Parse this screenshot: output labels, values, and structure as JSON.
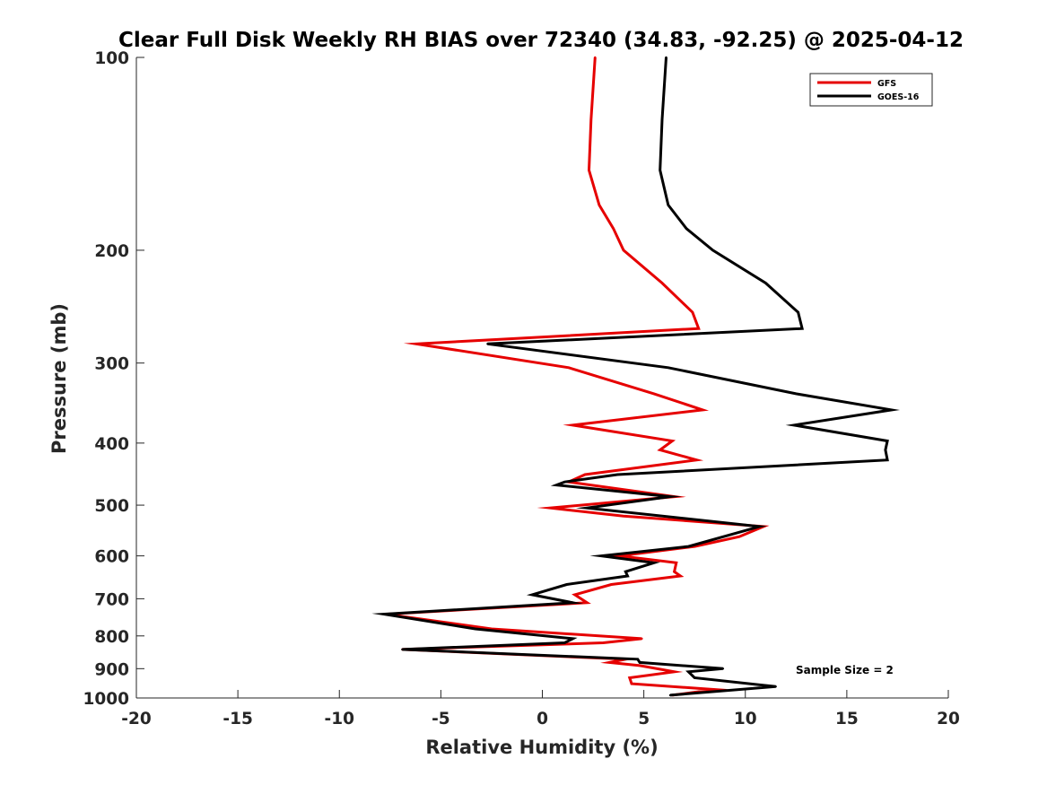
{
  "chart_data": {
    "type": "line",
    "title": "Clear Full Disk Weekly RH BIAS over 72340 (34.83, -92.25) @ 2025-04-12",
    "xlabel": "Relative Humidity (%)",
    "ylabel": "Pressure (mb)",
    "xlim": [
      -20,
      20
    ],
    "ylim": [
      100,
      1000
    ],
    "yscale": "log",
    "y_reversed": true,
    "grid": false,
    "x_ticks": [
      -20,
      -15,
      -10,
      -5,
      0,
      5,
      10,
      15,
      20
    ],
    "x_tick_labels": [
      "-20",
      "-15",
      "-10",
      "-5",
      "0",
      "5",
      "10",
      "15",
      "20"
    ],
    "y_ticks": [
      100,
      200,
      300,
      400,
      500,
      600,
      700,
      800,
      900,
      1000
    ],
    "y_tick_labels": [
      "100",
      "200",
      "300",
      "400",
      "500",
      "600",
      "700",
      "800",
      "900",
      "1000"
    ],
    "legend_position": "top-right",
    "annotation": "Sample Size = 2",
    "series": [
      {
        "name": "GFS",
        "color": "#e60000",
        "points": [
          [
            2.6,
            100
          ],
          [
            2.4,
            125
          ],
          [
            2.3,
            150
          ],
          [
            2.8,
            170
          ],
          [
            3.5,
            185
          ],
          [
            4.0,
            200
          ],
          [
            5.9,
            225
          ],
          [
            7.4,
            250
          ],
          [
            7.7,
            265
          ],
          [
            -6.2,
            280
          ],
          [
            1.3,
            305
          ],
          [
            5.5,
            335
          ],
          [
            7.9,
            355
          ],
          [
            1.5,
            375
          ],
          [
            6.4,
            397
          ],
          [
            5.8,
            410
          ],
          [
            7.6,
            425
          ],
          [
            2.1,
            448
          ],
          [
            1.3,
            460
          ],
          [
            6.5,
            485
          ],
          [
            0.4,
            505
          ],
          [
            4.0,
            520
          ],
          [
            10.9,
            540
          ],
          [
            9.7,
            560
          ],
          [
            7.5,
            580
          ],
          [
            3.8,
            600
          ],
          [
            6.6,
            615
          ],
          [
            6.5,
            635
          ],
          [
            6.8,
            645
          ],
          [
            3.4,
            665
          ],
          [
            1.6,
            690
          ],
          [
            2.2,
            710
          ],
          [
            -7.7,
            740
          ],
          [
            -2.5,
            780
          ],
          [
            4.9,
            808
          ],
          [
            3.0,
            820
          ],
          [
            -6.9,
            840
          ],
          [
            4.1,
            870
          ],
          [
            3.3,
            880
          ],
          [
            4.8,
            890
          ],
          [
            6.5,
            910
          ],
          [
            4.3,
            930
          ],
          [
            4.4,
            950
          ],
          [
            8.5,
            970
          ],
          [
            6.4,
            990
          ]
        ]
      },
      {
        "name": "GOES-16",
        "color": "#000000",
        "points": [
          [
            6.1,
            100
          ],
          [
            5.9,
            125
          ],
          [
            5.8,
            150
          ],
          [
            6.2,
            170
          ],
          [
            7.1,
            185
          ],
          [
            8.4,
            200
          ],
          [
            11.0,
            225
          ],
          [
            12.6,
            250
          ],
          [
            12.8,
            265
          ],
          [
            -2.7,
            280
          ],
          [
            6.2,
            305
          ],
          [
            12.5,
            335
          ],
          [
            17.2,
            355
          ],
          [
            12.4,
            375
          ],
          [
            17.0,
            397
          ],
          [
            16.9,
            410
          ],
          [
            17.0,
            425
          ],
          [
            3.7,
            448
          ],
          [
            1.1,
            460
          ],
          [
            0.7,
            465
          ],
          [
            6.3,
            485
          ],
          [
            2.2,
            505
          ],
          [
            10.7,
            540
          ],
          [
            7.2,
            580
          ],
          [
            2.9,
            600
          ],
          [
            5.5,
            615
          ],
          [
            4.1,
            635
          ],
          [
            4.2,
            645
          ],
          [
            1.2,
            665
          ],
          [
            -0.5,
            690
          ],
          [
            1.5,
            710
          ],
          [
            -7.8,
            740
          ],
          [
            -3.3,
            780
          ],
          [
            1.5,
            808
          ],
          [
            1.1,
            820
          ],
          [
            -6.9,
            840
          ],
          [
            4.7,
            870
          ],
          [
            4.8,
            880
          ],
          [
            8.9,
            900
          ],
          [
            7.2,
            910
          ],
          [
            7.5,
            930
          ],
          [
            11.5,
            960
          ],
          [
            6.3,
            990
          ]
        ]
      }
    ]
  }
}
